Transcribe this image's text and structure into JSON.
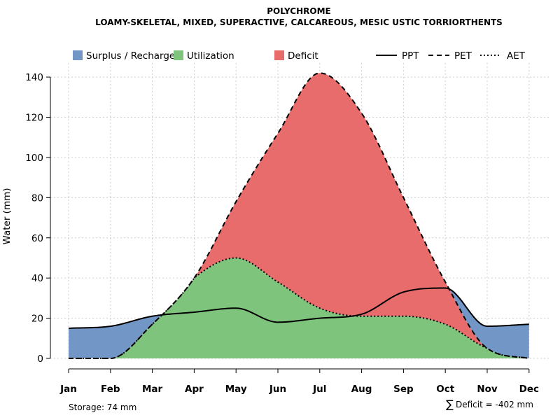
{
  "chart_data": {
    "type": "area",
    "title": "POLYCHROME",
    "subtitle": "LOAMY-SKELETAL, MIXED, SUPERACTIVE, CALCAREOUS, MESIC USTIC TORRIORTHENTS",
    "ylabel": "Water (mm)",
    "xlabel": "",
    "ylim": [
      0,
      147
    ],
    "yticks": [
      0,
      20,
      40,
      60,
      80,
      100,
      120,
      140
    ],
    "grid": true,
    "legend_position": "top",
    "categories": [
      "Jan",
      "Feb",
      "Mar",
      "Apr",
      "May",
      "Jun",
      "Jul",
      "Aug",
      "Sep",
      "Oct",
      "Nov",
      "Dec"
    ],
    "series": [
      {
        "name": "PPT",
        "line_style": "solid",
        "values": [
          15,
          16,
          21,
          23,
          25,
          18,
          20,
          22,
          33,
          35,
          16,
          17
        ]
      },
      {
        "name": "PET",
        "line_style": "dashed",
        "values": [
          0,
          0,
          17,
          40,
          78,
          112,
          142,
          122,
          80,
          38,
          5,
          0
        ]
      },
      {
        "name": "AET",
        "line_style": "dotted",
        "values": [
          0,
          0,
          17,
          40,
          50,
          38,
          25,
          21,
          21,
          17,
          5,
          0
        ]
      }
    ],
    "bands": [
      {
        "name": "Surplus / Recharge",
        "color": "#7297c7"
      },
      {
        "name": "Utilization",
        "color": "#7fc47c"
      },
      {
        "name": "Deficit",
        "color": "#e96c6c"
      }
    ],
    "annotations": {
      "storage": "Storage: 74 mm",
      "deficit_symbol": "∑",
      "deficit": "Deficit = -402 mm"
    }
  }
}
